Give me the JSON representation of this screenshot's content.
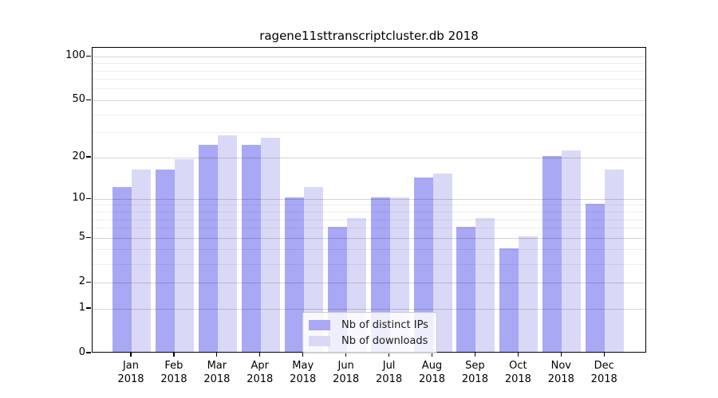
{
  "chart_data": {
    "type": "bar",
    "title": "ragene11sttranscriptcluster.db 2018",
    "categories": [
      "Jan",
      "Feb",
      "Mar",
      "Apr",
      "May",
      "Jun",
      "Jul",
      "Aug",
      "Sep",
      "Oct",
      "Nov",
      "Dec"
    ],
    "year": "2018",
    "series": [
      {
        "name": "Nb of distinct IPs",
        "color": "#a8a8f5",
        "values": [
          12,
          16,
          24,
          24,
          10,
          6,
          10,
          14,
          6,
          4,
          20,
          9
        ]
      },
      {
        "name": "Nb of downloads",
        "color": "#d9d9f7",
        "values": [
          16,
          19,
          28,
          27,
          12,
          7,
          10,
          15,
          7,
          5,
          22,
          16
        ]
      }
    ],
    "xlabel": "",
    "ylabel": "",
    "yscale": "log1p",
    "ylim": [
      0,
      115
    ],
    "yticks": [
      100,
      50,
      20,
      10,
      5,
      2,
      1,
      0
    ],
    "yticks_minor": [
      3,
      4,
      6,
      7,
      8,
      9,
      30,
      40,
      60,
      70,
      80,
      90
    ],
    "grid": true,
    "legend_position": "lower center",
    "colors": {
      "background": "#ffffff",
      "spine": "#000000",
      "grid_major": "#d4d4d4",
      "grid_minor": "#ececec",
      "text": "#000000"
    }
  }
}
